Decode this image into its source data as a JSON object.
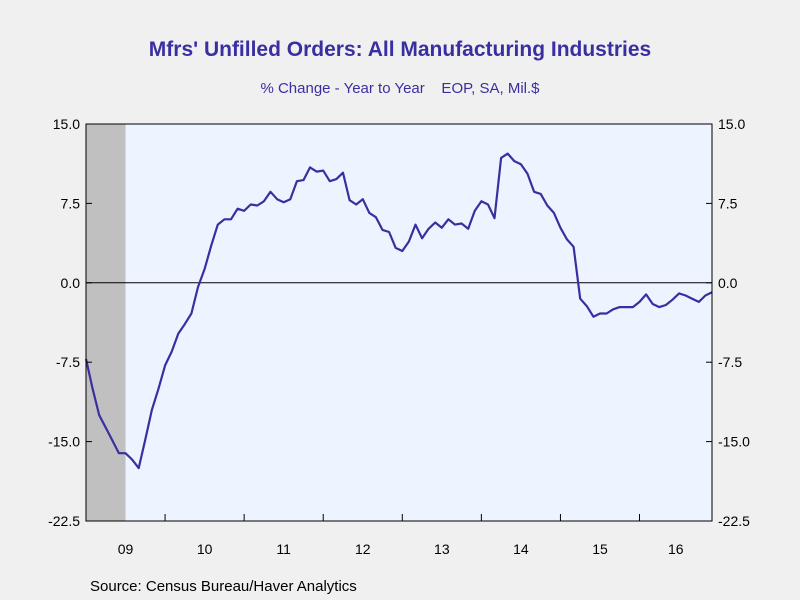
{
  "chart_data": {
    "type": "line",
    "title": "Mfrs' Unfilled Orders: All Manufacturing Industries",
    "subtitle": "% Change - Year to Year    EOP, SA, Mil.$",
    "source": "Source:  Census Bureau/Haver Analytics",
    "x_tick_labels": [
      "09",
      "10",
      "11",
      "12",
      "13",
      "14",
      "15",
      "16"
    ],
    "y_tick_labels": [
      "15.0",
      "7.5",
      "0.0",
      "-7.5",
      "-15.0",
      "-22.5"
    ],
    "y_ticks": [
      15,
      7.5,
      0,
      -7.5,
      -15,
      -22.5
    ],
    "ylim": [
      -22.5,
      15
    ],
    "xlim": [
      2009.0,
      2016.9167
    ],
    "grid": false,
    "zero_line": true,
    "recession_shading": {
      "start": 2009.0,
      "end": 2009.5,
      "color": "#c0c0c0"
    },
    "colors": {
      "line": "#3a2fa0",
      "plot_bg": "#eef4ff",
      "title": "#3a2fa0"
    },
    "series": [
      {
        "x": [
          2009.0,
          2009.0833,
          2009.1667,
          2009.25,
          2009.3333,
          2009.4167,
          2009.5,
          2009.5833,
          2009.6667,
          2009.75,
          2009.8333,
          2009.9167,
          2010.0,
          2010.0833,
          2010.1667,
          2010.25,
          2010.3333,
          2010.4167,
          2010.5,
          2010.5833,
          2010.6667,
          2010.75,
          2010.8333,
          2010.9167,
          2011.0,
          2011.0833,
          2011.1667,
          2011.25,
          2011.3333,
          2011.4167,
          2011.5,
          2011.5833,
          2011.6667,
          2011.75,
          2011.8333,
          2011.9167,
          2012.0,
          2012.0833,
          2012.1667,
          2012.25,
          2012.3333,
          2012.4167,
          2012.5,
          2012.5833,
          2012.6667,
          2012.75,
          2012.8333,
          2012.9167,
          2013.0,
          2013.0833,
          2013.1667,
          2013.25,
          2013.3333,
          2013.4167,
          2013.5,
          2013.5833,
          2013.6667,
          2013.75,
          2013.8333,
          2013.9167,
          2014.0,
          2014.0833,
          2014.1667,
          2014.25,
          2014.3333,
          2014.4167,
          2014.5,
          2014.5833,
          2014.6667,
          2014.75,
          2014.8333,
          2014.9167,
          2015.0,
          2015.0833,
          2015.1667,
          2015.25,
          2015.3333,
          2015.4167,
          2015.5,
          2015.5833,
          2015.6667,
          2015.75,
          2015.8333,
          2015.9167,
          2016.0,
          2016.0833,
          2016.1667,
          2016.25,
          2016.3333,
          2016.4167,
          2016.5,
          2016.5833,
          2016.6667,
          2016.75,
          2016.8333,
          2016.9167
        ],
        "values": [
          -7.2,
          -10.0,
          -12.5,
          -13.7,
          -14.9,
          -16.1,
          -16.1,
          -16.7,
          -17.5,
          -14.8,
          -12.0,
          -10.0,
          -7.8,
          -6.5,
          -4.8,
          -3.9,
          -2.9,
          -0.4,
          1.3,
          3.5,
          5.5,
          6.0,
          6.0,
          7.0,
          6.8,
          7.4,
          7.3,
          7.7,
          8.6,
          7.9,
          7.6,
          7.9,
          9.6,
          9.7,
          10.9,
          10.5,
          10.6,
          9.6,
          9.8,
          10.4,
          7.8,
          7.4,
          7.9,
          6.6,
          6.2,
          5.0,
          4.8,
          3.3,
          3.0,
          3.9,
          5.5,
          4.2,
          5.1,
          5.7,
          5.2,
          6.0,
          5.5,
          5.6,
          5.1,
          6.8,
          7.7,
          7.4,
          6.1,
          11.8,
          12.2,
          11.5,
          11.2,
          10.3,
          8.6,
          8.4,
          7.3,
          6.6,
          5.2,
          4.1,
          3.4,
          -1.5,
          -2.2,
          -3.2,
          -2.9,
          -2.9,
          -2.5,
          -2.3,
          -2.3,
          -2.3,
          -1.8,
          -1.1,
          -2.0,
          -2.3,
          -2.1,
          -1.6,
          -1.0,
          -1.2,
          -1.5,
          -1.8,
          -1.2,
          -0.9
        ]
      }
    ]
  }
}
